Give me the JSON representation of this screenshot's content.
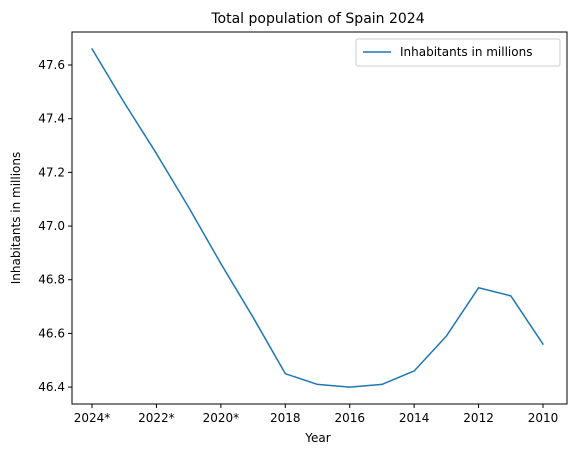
{
  "chart_data": {
    "type": "line",
    "title": "Total population of Spain 2024",
    "xlabel": "Year",
    "ylabel": "Inhabitants in millions",
    "categories": [
      "2024*",
      "2023*",
      "2022*",
      "2021*",
      "2020*",
      "2019",
      "2018",
      "2017",
      "2016",
      "2015",
      "2014",
      "2013",
      "2012",
      "2011",
      "2010"
    ],
    "x_tick_labels": [
      "2024*",
      "2022*",
      "2020*",
      "2018",
      "2016",
      "2014",
      "2012",
      "2010"
    ],
    "series": [
      {
        "name": "Inhabitants in millions",
        "color": "#1f77b4",
        "values": [
          47.66,
          47.46,
          47.27,
          47.07,
          46.86,
          46.66,
          46.45,
          46.41,
          46.4,
          46.41,
          46.46,
          46.59,
          46.77,
          46.74,
          46.56
        ]
      }
    ],
    "y_ticks": [
      46.4,
      46.6,
      46.8,
      47.0,
      47.2,
      47.4,
      47.6
    ],
    "y_tick_labels": [
      "46.4",
      "46.6",
      "46.8",
      "47.0",
      "47.2",
      "47.4",
      "47.6"
    ],
    "ylim": [
      46.337,
      47.723
    ],
    "grid": false,
    "legend_position": "top-right"
  }
}
